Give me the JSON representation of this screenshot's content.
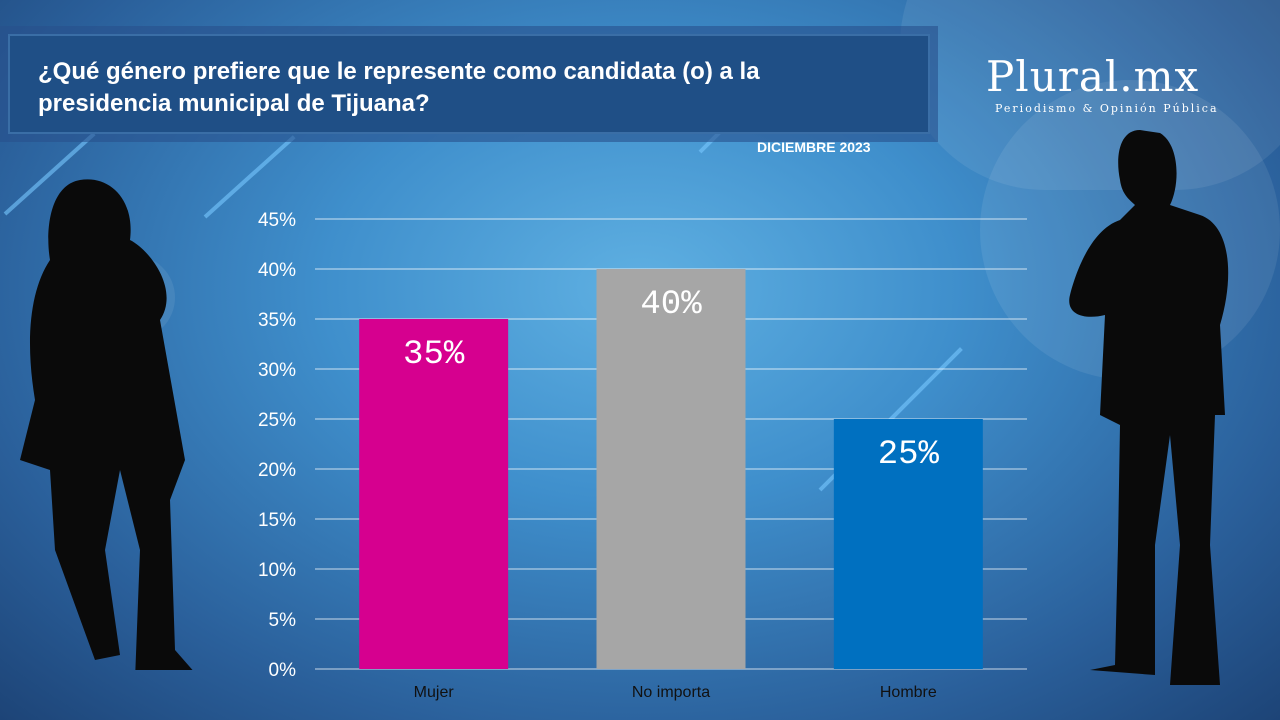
{
  "header": {
    "title": "¿Qué género prefiere que le represente como candidata (o) a  la presidencia municipal de Tijuana?",
    "date": "DICIEMBRE 2023"
  },
  "logo": {
    "name": "Plural.mx",
    "tagline": "Periodismo & Opinión Pública"
  },
  "chart_data": {
    "type": "bar",
    "title": "¿Qué género prefiere que le represente como candidata (o) a  la presidencia municipal de Tijuana?",
    "categories": [
      "Mujer",
      "No importa",
      "Hombre"
    ],
    "values": [
      35,
      40,
      25
    ],
    "data_labels": [
      "35%",
      "40%",
      "25%"
    ],
    "colors": [
      "#d6008f",
      "#a6a6a6",
      "#0070c0"
    ],
    "ylim": [
      0,
      45
    ],
    "yticks": [
      "0%",
      "5%",
      "10%",
      "15%",
      "20%",
      "25%",
      "30%",
      "35%",
      "40%",
      "45%"
    ],
    "grid": true,
    "xlabel": "",
    "ylabel": ""
  }
}
